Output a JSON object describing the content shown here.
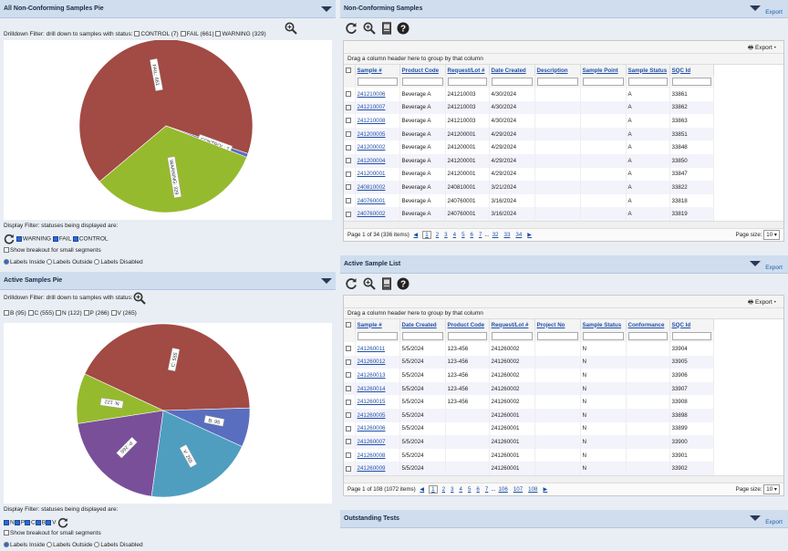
{
  "left_top": {
    "title": "All Non-Conforming Samples Pie",
    "drill_label": "Drilldown Filter: drill down to samples with status:",
    "drill_opts": [
      "CONTROL (7)",
      "FAIL (661)",
      "WARNING (329)"
    ],
    "display_label": "Display Filter: statuses being displayed are:",
    "display_opts": [
      "WARNING",
      "FAIL",
      "CONTROL"
    ],
    "show_breakout": "Show breakout for small segments",
    "labels_inside": "Labels Inside",
    "labels_outside": "Labels Outside",
    "labels_disabled": "Labels Disabled"
  },
  "left_bottom": {
    "title": "Active Samples Pie",
    "drill_label": "Drilldown Filter: drill down to samples with status:",
    "drill_opts": [
      "B (95)",
      "C (555)",
      "N (122)",
      "P (266)",
      "V (265)"
    ],
    "display_label": "Display Filter: statuses being displayed are:",
    "display_opts": [
      "N",
      "P",
      "C",
      "B",
      "V"
    ],
    "show_breakout": "Show breakout for small segments",
    "labels_inside": "Labels Inside",
    "labels_outside": "Labels Outside",
    "labels_disabled": "Labels Disabled"
  },
  "chart_data": [
    {
      "type": "pie",
      "labels": [
        "FAIL",
        "CONTROL",
        "WARNING"
      ],
      "values": [
        661,
        7,
        329
      ],
      "colors": [
        "#a24a44",
        "#5a6ec0",
        "#96ba2e"
      ]
    },
    {
      "type": "pie",
      "labels": [
        "C",
        "B",
        "V",
        "P",
        "N"
      ],
      "values": [
        555,
        95,
        265,
        266,
        122
      ],
      "colors": [
        "#a24a44",
        "#5a6ec0",
        "#4f9ec0",
        "#7a4f9a",
        "#96ba2e"
      ]
    }
  ],
  "nc": {
    "title": "Non-Conforming Samples",
    "export": "Export",
    "group_hint": "Drag a column header here to group by that column",
    "columns": [
      "Sample #",
      "Product Code",
      "Request/Lot #",
      "Date Created",
      "Description",
      "Sample Point",
      "Sample Status",
      "SQC Id"
    ],
    "rows": [
      [
        "241210006",
        "Beverage A",
        "241210003",
        "4/30/2024",
        "",
        "",
        "A",
        "33861"
      ],
      [
        "241210007",
        "Beverage A",
        "241210003",
        "4/30/2024",
        "",
        "",
        "A",
        "33862"
      ],
      [
        "241210008",
        "Beverage A",
        "241210003",
        "4/30/2024",
        "",
        "",
        "A",
        "33863"
      ],
      [
        "241200005",
        "Beverage A",
        "241200001",
        "4/29/2024",
        "",
        "",
        "A",
        "33851"
      ],
      [
        "241200002",
        "Beverage A",
        "241200001",
        "4/29/2024",
        "",
        "",
        "A",
        "33848"
      ],
      [
        "241200004",
        "Beverage A",
        "241200001",
        "4/29/2024",
        "",
        "",
        "A",
        "33850"
      ],
      [
        "241200001",
        "Beverage A",
        "241200001",
        "4/29/2024",
        "",
        "",
        "A",
        "33847"
      ],
      [
        "240810002",
        "Beverage A",
        "240810001",
        "3/21/2024",
        "",
        "",
        "A",
        "33822"
      ],
      [
        "240760001",
        "Beverage A",
        "240760001",
        "3/16/2024",
        "",
        "",
        "A",
        "33818"
      ],
      [
        "240760002",
        "Beverage A",
        "240760001",
        "3/16/2024",
        "",
        "",
        "A",
        "33819"
      ]
    ],
    "page_info": "Page 1 of 34 (336 items)",
    "pages": [
      "1",
      "2",
      "3",
      "4",
      "5",
      "6",
      "7",
      "...",
      "32",
      "33",
      "34"
    ],
    "page_size_label": "Page size:",
    "page_size": "10"
  },
  "as": {
    "title": "Active Sample List",
    "export": "Export",
    "group_hint": "Drag a column header here to group by that column",
    "columns": [
      "Sample #",
      "Date Created",
      "Product Code",
      "Request/Lot #",
      "Project No",
      "Sample Status",
      "Conformance",
      "SQC Id"
    ],
    "rows": [
      [
        "241260011",
        "5/5/2024",
        "123-456",
        "241260002",
        "",
        "N",
        "",
        "33904"
      ],
      [
        "241260012",
        "5/5/2024",
        "123-456",
        "241260002",
        "",
        "N",
        "",
        "33905"
      ],
      [
        "241260013",
        "5/5/2024",
        "123-456",
        "241260002",
        "",
        "N",
        "",
        "33906"
      ],
      [
        "241260014",
        "5/5/2024",
        "123-456",
        "241260002",
        "",
        "N",
        "",
        "33907"
      ],
      [
        "241260015",
        "5/5/2024",
        "123-456",
        "241260002",
        "",
        "N",
        "",
        "33908"
      ],
      [
        "241260005",
        "5/5/2024",
        "",
        "241260001",
        "",
        "N",
        "",
        "33898"
      ],
      [
        "241260006",
        "5/5/2024",
        "",
        "241260001",
        "",
        "N",
        "",
        "33899"
      ],
      [
        "241260007",
        "5/5/2024",
        "",
        "241260001",
        "",
        "N",
        "",
        "33900"
      ],
      [
        "241260008",
        "5/5/2024",
        "",
        "241260001",
        "",
        "N",
        "",
        "33901"
      ],
      [
        "241260009",
        "5/5/2024",
        "",
        "241260001",
        "",
        "N",
        "",
        "33902"
      ]
    ],
    "page_info": "Page 1 of 108 (1072 items)",
    "pages": [
      "1",
      "2",
      "3",
      "4",
      "5",
      "6",
      "7",
      "...",
      "106",
      "107",
      "108"
    ],
    "page_size_label": "Page size:",
    "page_size": "10"
  },
  "ot": {
    "title": "Outstanding Tests",
    "export": "Export"
  }
}
